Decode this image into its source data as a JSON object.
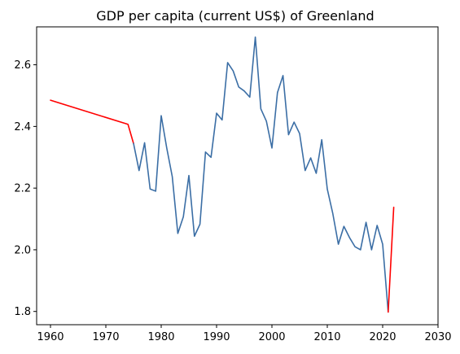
{
  "chart_data": {
    "type": "line",
    "title": "GDP per capita (current US$) of Greenland",
    "xlabel": "",
    "ylabel": "",
    "xlim": [
      1957.5,
      2030
    ],
    "ylim": [
      1.757,
      2.723
    ],
    "x_ticks": [
      "1960",
      "1970",
      "1980",
      "1990",
      "2000",
      "2010",
      "2020",
      "2030"
    ],
    "y_ticks": [
      "1.8",
      "2.0",
      "2.2",
      "2.4",
      "2.6"
    ],
    "grid": false,
    "legend": "none",
    "series": [
      {
        "color": "#ff0000",
        "points": [
          [
            1960,
            2.485
          ],
          [
            1974,
            2.407
          ],
          [
            1975,
            2.345
          ]
        ]
      },
      {
        "color": "#3b6ea5",
        "points": [
          [
            1975,
            2.345
          ],
          [
            1976,
            2.257
          ],
          [
            1977,
            2.347
          ],
          [
            1978,
            2.197
          ],
          [
            1979,
            2.19
          ],
          [
            1980,
            2.435
          ],
          [
            1981,
            2.33
          ],
          [
            1982,
            2.237
          ],
          [
            1983,
            2.053
          ],
          [
            1984,
            2.107
          ],
          [
            1985,
            2.241
          ],
          [
            1986,
            2.044
          ],
          [
            1987,
            2.083
          ],
          [
            1988,
            2.317
          ],
          [
            1989,
            2.3
          ],
          [
            1990,
            2.443
          ],
          [
            1991,
            2.421
          ],
          [
            1992,
            2.607
          ],
          [
            1993,
            2.58
          ],
          [
            1994,
            2.528
          ],
          [
            1995,
            2.515
          ],
          [
            1996,
            2.495
          ],
          [
            1997,
            2.69
          ],
          [
            1998,
            2.457
          ],
          [
            1999,
            2.417
          ],
          [
            2000,
            2.33
          ],
          [
            2001,
            2.51
          ],
          [
            2002,
            2.565
          ],
          [
            2003,
            2.373
          ],
          [
            2004,
            2.414
          ],
          [
            2005,
            2.377
          ],
          [
            2006,
            2.257
          ],
          [
            2007,
            2.298
          ],
          [
            2008,
            2.248
          ],
          [
            2009,
            2.357
          ],
          [
            2010,
            2.197
          ],
          [
            2011,
            2.117
          ],
          [
            2012,
            2.018
          ],
          [
            2013,
            2.076
          ],
          [
            2014,
            2.04
          ],
          [
            2015,
            2.01
          ],
          [
            2016,
            2.0
          ],
          [
            2017,
            2.089
          ],
          [
            2018,
            2.0
          ],
          [
            2019,
            2.079
          ],
          [
            2020,
            2.018
          ],
          [
            2021,
            1.798
          ]
        ]
      },
      {
        "color": "#ff0000",
        "points": [
          [
            2021,
            1.798
          ],
          [
            2022,
            2.138
          ]
        ]
      }
    ]
  }
}
